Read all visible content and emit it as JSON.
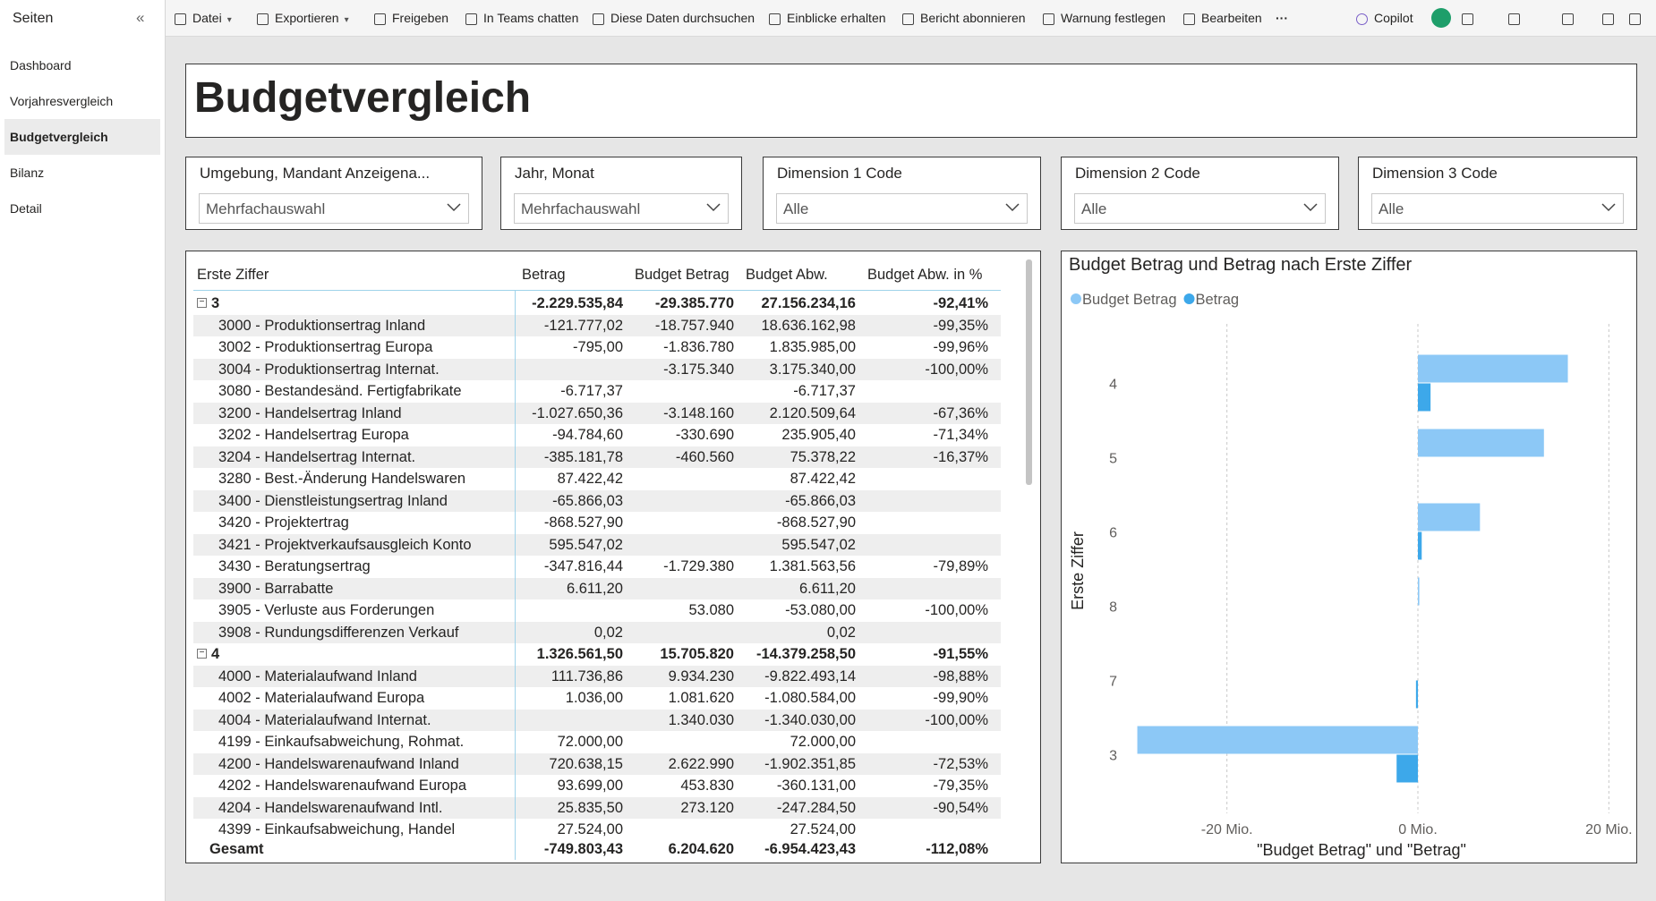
{
  "sidebar": {
    "title": "Seiten",
    "pages": [
      "Dashboard",
      "Vorjahresvergleich",
      "Budgetvergleich",
      "Bilanz",
      "Detail"
    ]
  },
  "toolbar": {
    "items": [
      "Datei",
      "Exportieren",
      "Freigeben",
      "In Teams chatten",
      "Diese Daten durchsuchen",
      "Einblicke erhalten",
      "Bericht abonnieren",
      "Warnung festlegen",
      "Bearbeiten"
    ],
    "copilot": "Copilot"
  },
  "report": {
    "title": "Budgetvergleich",
    "slicers": [
      {
        "label": "Umgebung, Mandant Anzeigena...",
        "value": "Mehrfachauswahl"
      },
      {
        "label": "Jahr, Monat",
        "value": "Mehrfachauswahl"
      },
      {
        "label": "Dimension 1 Code",
        "value": "Alle"
      },
      {
        "label": "Dimension 2 Code",
        "value": "Alle"
      },
      {
        "label": "Dimension 3 Code",
        "value": "Alle"
      }
    ],
    "table": {
      "columns": [
        "Erste Ziffer",
        "Betrag",
        "Budget Betrag",
        "Budget Abw.",
        "Budget Abw. in %"
      ],
      "groups": [
        {
          "label": "3",
          "totals": [
            "-2.229.535,84",
            "-29.385.770",
            "27.156.234,16",
            "-92,41%"
          ],
          "rows": [
            [
              "3000 - Produktionsertrag Inland",
              "-121.777,02",
              "-18.757.940",
              "18.636.162,98",
              "-99,35%"
            ],
            [
              "3002 - Produktionsertrag Europa",
              "-795,00",
              "-1.836.780",
              "1.835.985,00",
              "-99,96%"
            ],
            [
              "3004 - Produktionsertrag Internat.",
              null,
              "-3.175.340",
              "3.175.340,00",
              "-100,00%"
            ],
            [
              "3080 - Bestandesänd. Fertigfabrikate",
              "-6.717,37",
              null,
              "-6.717,37",
              null
            ],
            [
              "3200 - Handelsertrag Inland",
              "-1.027.650,36",
              "-3.148.160",
              "2.120.509,64",
              "-67,36%"
            ],
            [
              "3202 - Handelsertrag Europa",
              "-94.784,60",
              "-330.690",
              "235.905,40",
              "-71,34%"
            ],
            [
              "3204 - Handelsertrag Internat.",
              "-385.181,78",
              "-460.560",
              "75.378,22",
              "-16,37%"
            ],
            [
              "3280 - Best.-Änderung Handelswaren",
              "87.422,42",
              null,
              "87.422,42",
              null
            ],
            [
              "3400 - Dienstleistungsertrag Inland",
              "-65.866,03",
              null,
              "-65.866,03",
              null
            ],
            [
              "3420 - Projektertrag",
              "-868.527,90",
              null,
              "-868.527,90",
              null
            ],
            [
              "3421 - Projektverkaufsausgleich Konto",
              "595.547,02",
              null,
              "595.547,02",
              null
            ],
            [
              "3430 - Beratungsertrag",
              "-347.816,44",
              "-1.729.380",
              "1.381.563,56",
              "-79,89%"
            ],
            [
              "3900 - Barrabatte",
              "6.611,20",
              null,
              "6.611,20",
              null
            ],
            [
              "3905 - Verluste aus Forderungen",
              null,
              "53.080",
              "-53.080,00",
              "-100,00%"
            ],
            [
              "3908 - Rundungsdifferenzen Verkauf",
              "0,02",
              null,
              "0,02",
              null
            ]
          ]
        },
        {
          "label": "4",
          "totals": [
            "1.326.561,50",
            "15.705.820",
            "-14.379.258,50",
            "-91,55%"
          ],
          "rows": [
            [
              "4000 - Materialaufwand Inland",
              "111.736,86",
              "9.934.230",
              "-9.822.493,14",
              "-98,88%"
            ],
            [
              "4002 - Materialaufwand Europa",
              "1.036,00",
              "1.081.620",
              "-1.080.584,00",
              "-99,90%"
            ],
            [
              "4004 - Materialaufwand Internat.",
              null,
              "1.340.030",
              "-1.340.030,00",
              "-100,00%"
            ],
            [
              "4199 - Einkaufsabweichung, Rohmat.",
              "72.000,00",
              null,
              "72.000,00",
              null
            ],
            [
              "4200 - Handelswarenaufwand Inland",
              "720.638,15",
              "2.622.990",
              "-1.902.351,85",
              "-72,53%"
            ],
            [
              "4202 - Handelswarenaufwand Europa",
              "93.699,00",
              "453.830",
              "-360.131,00",
              "-79,35%"
            ],
            [
              "4204 - Handelswarenaufwand Intl.",
              "25.835,50",
              "273.120",
              "-247.284,50",
              "-90,54%"
            ],
            [
              "4399 - Einkaufsabweichung, Handel",
              "27.524,00",
              null,
              "27.524,00",
              null
            ]
          ]
        }
      ],
      "total": {
        "label": "Gesamt",
        "values": [
          "-749.803,43",
          "6.204.620",
          "-6.954.423,43",
          "-112,08%"
        ]
      }
    }
  },
  "chart_data": {
    "type": "bar",
    "orientation": "horizontal",
    "title": "Budget Betrag und Betrag nach Erste Ziffer",
    "x_label": "\"Budget Betrag\" und \"Betrag\"",
    "y_label": "Erste Ziffer",
    "categories": [
      "4",
      "5",
      "6",
      "8",
      "7",
      "3"
    ],
    "series": [
      {
        "name": "Budget Betrag",
        "color": "#8cc8f6",
        "values": [
          15705820,
          13200000,
          6500000,
          150000,
          null,
          -29385770
        ]
      },
      {
        "name": "Betrag",
        "color": "#3da8ea",
        "values": [
          1326561.5,
          null,
          400000,
          null,
          -200000,
          -2229535.84
        ]
      }
    ],
    "xlim": [
      -30000000,
      21000000
    ],
    "xticks": [
      {
        "value": -20000000,
        "label": "-20 Mio."
      },
      {
        "value": 0,
        "label": "0 Mio."
      },
      {
        "value": 20000000,
        "label": "20 Mio."
      }
    ],
    "grid": true,
    "legend": "top-left"
  }
}
